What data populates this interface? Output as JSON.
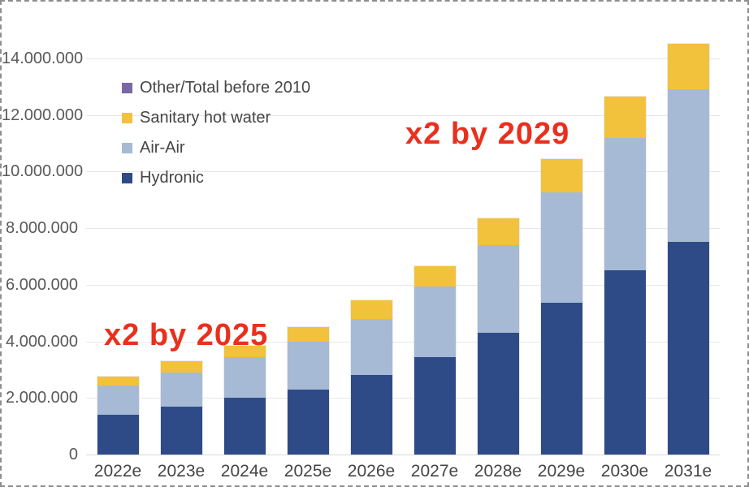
{
  "annotations": [
    {
      "id": "x2-by-2025",
      "text": "x2 by 2025",
      "color": "#e9301e"
    },
    {
      "id": "x2-by-2029",
      "text": "x2 by 2029",
      "color": "#e9301e"
    }
  ],
  "chart_data": {
    "type": "bar",
    "stacked": true,
    "title": "",
    "xlabel": "",
    "ylabel": "",
    "grid": true,
    "legend_position": "inside-top-left",
    "categories": [
      "2022e",
      "2023e",
      "2024e",
      "2025e",
      "2026e",
      "2027e",
      "2028e",
      "2029e",
      "2030e",
      "2031e"
    ],
    "series": [
      {
        "name": "Hydronic",
        "color": "#2e4b87",
        "values": [
          1400000,
          1700000,
          2000000,
          2300000,
          2800000,
          3450000,
          4300000,
          5350000,
          6500000,
          7500000
        ]
      },
      {
        "name": "Air-Air",
        "color": "#a6bad6",
        "values": [
          1050000,
          1200000,
          1450000,
          1700000,
          2000000,
          2500000,
          3100000,
          3900000,
          4700000,
          5400000
        ]
      },
      {
        "name": "Sanitary hot water",
        "color": "#f2c23d",
        "values": [
          300000,
          400000,
          400000,
          500000,
          650000,
          700000,
          950000,
          1200000,
          1450000,
          1600000
        ]
      },
      {
        "name": "Other/Total before 2010",
        "color": "#7a68a6",
        "values": [
          0,
          0,
          0,
          0,
          0,
          0,
          0,
          0,
          0,
          0
        ]
      }
    ],
    "totals": [
      2750000,
      3300000,
      3850000,
      4500000,
      5450000,
      6650000,
      8350000,
      10450000,
      12650000,
      14500000
    ],
    "legend": [
      {
        "label": "Other/Total before 2010",
        "color": "#7a68a6"
      },
      {
        "label": "Sanitary hot water",
        "color": "#f2c23d"
      },
      {
        "label": "Air-Air",
        "color": "#a6bad6"
      },
      {
        "label": "Hydronic",
        "color": "#2e4b87"
      }
    ],
    "y_axis": {
      "min": 0,
      "max": 15000000,
      "ticks": [
        {
          "value": 0,
          "label": "0"
        },
        {
          "value": 2000000,
          "label": "2.000.000"
        },
        {
          "value": 4000000,
          "label": "4.000.000"
        },
        {
          "value": 6000000,
          "label": "6.000.000"
        },
        {
          "value": 8000000,
          "label": "8.000.000"
        },
        {
          "value": 10000000,
          "label": "10.000.000"
        },
        {
          "value": 12000000,
          "label": "12.000.000"
        },
        {
          "value": 14000000,
          "label": "14.000.000"
        }
      ]
    }
  }
}
